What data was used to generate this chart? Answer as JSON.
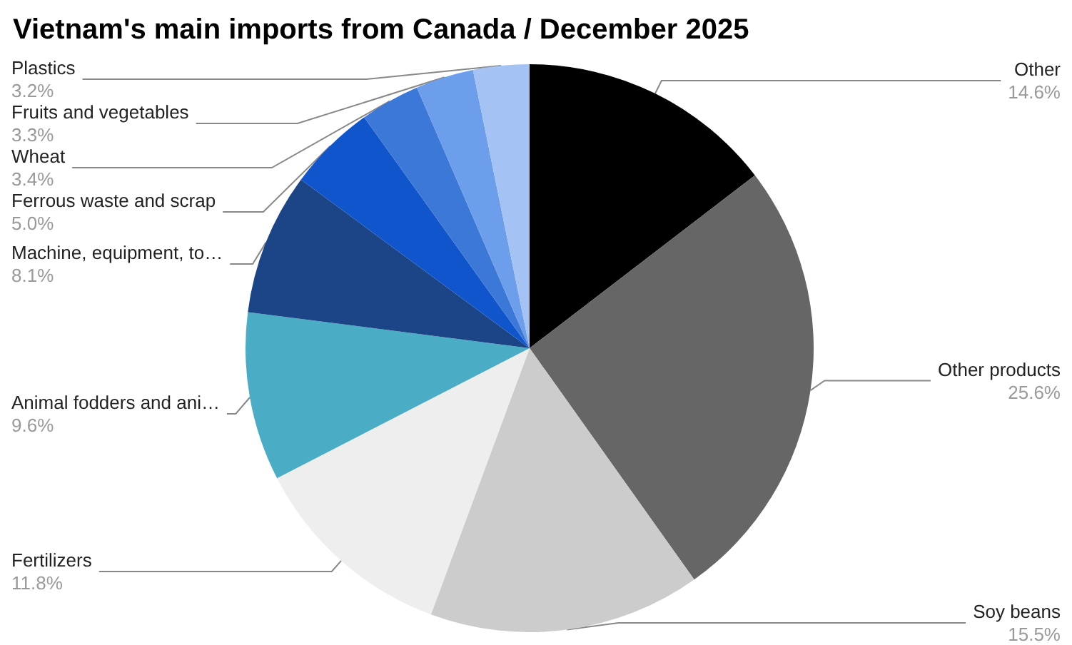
{
  "chart_data": {
    "type": "pie",
    "title": "Vietnam's main imports from Canada / December 2025",
    "categories": [
      "Other",
      "Other products",
      "Soy beans",
      "Fertilizers",
      "Animal fodders and ani…",
      "Machine, equipment, to…",
      "Ferrous waste and scrap",
      "Wheat",
      "Fruits and vegetables",
      "Plastics"
    ],
    "values": [
      14.6,
      25.6,
      15.5,
      11.8,
      9.6,
      8.1,
      5.0,
      3.4,
      3.3,
      3.2
    ],
    "value_labels": [
      "14.6%",
      "25.6%",
      "15.5%",
      "11.8%",
      "9.6%",
      "8.1%",
      "5.0%",
      "3.4%",
      "3.3%",
      "3.2%"
    ],
    "colors": [
      "#000000",
      "#666666",
      "#cccccc",
      "#eeeeee",
      "#4bacc6",
      "#1c4587",
      "#1155cc",
      "#3c78d8",
      "#6d9eeb",
      "#a4c2f4"
    ]
  }
}
